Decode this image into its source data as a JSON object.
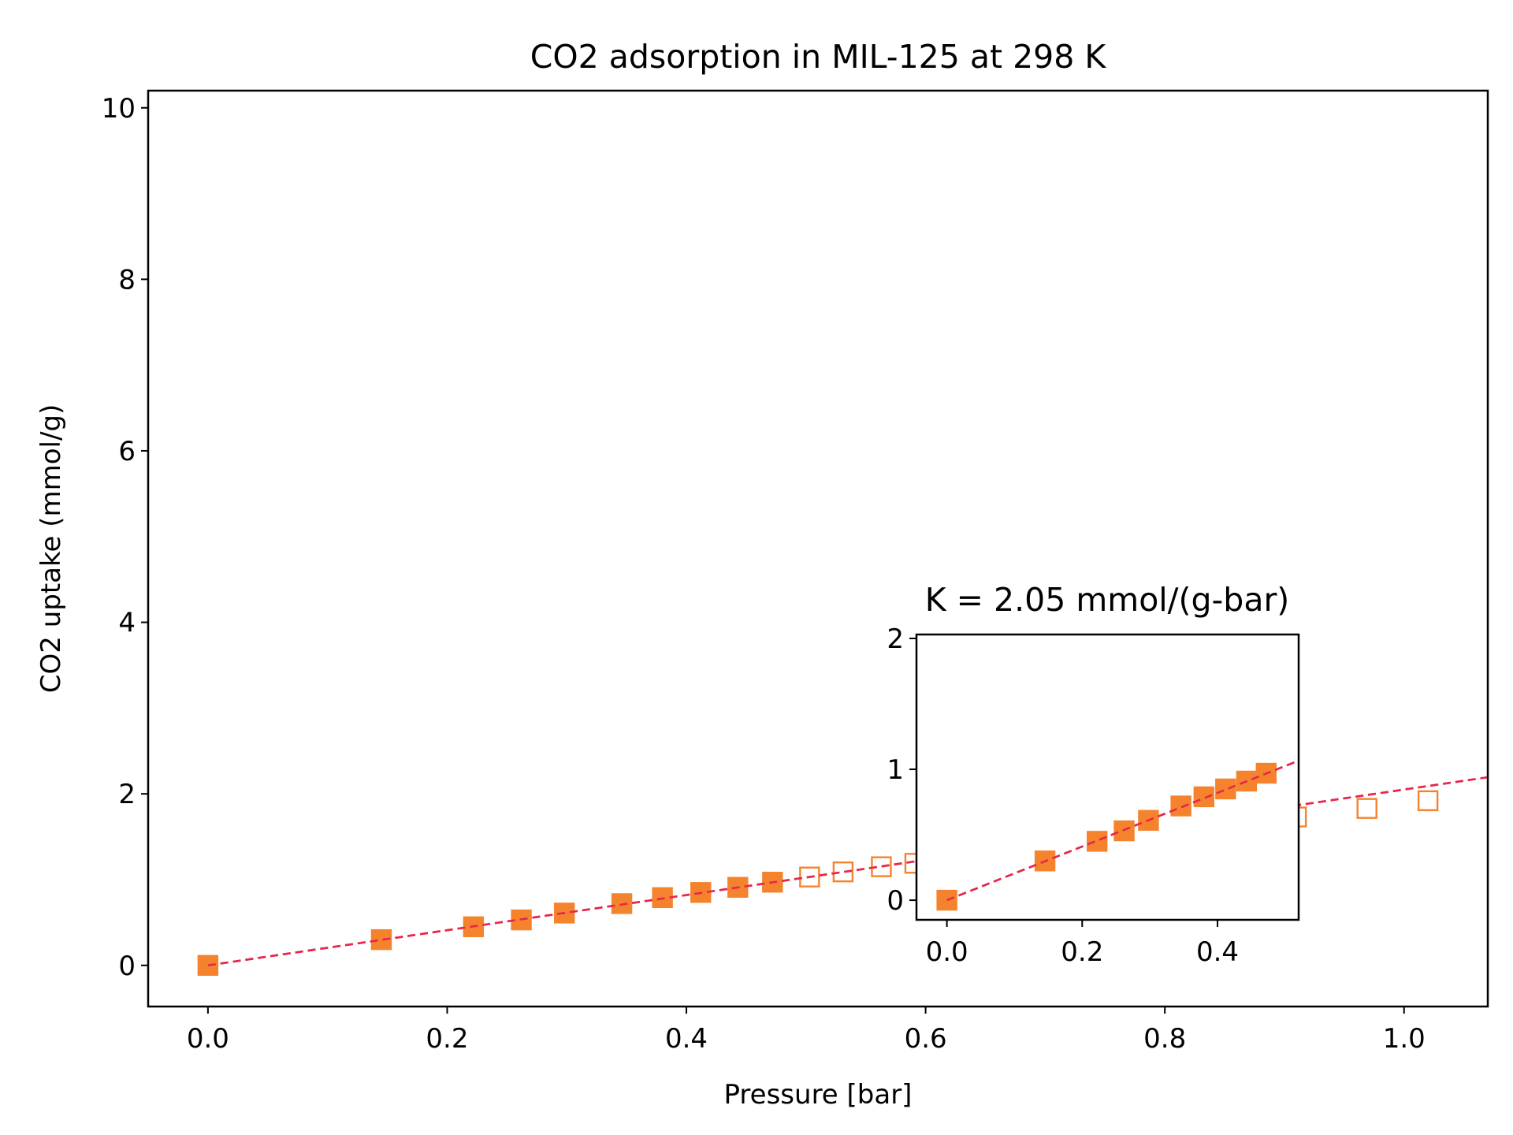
{
  "chart_data": {
    "type": "scatter",
    "title": "CO2 adsorption in MIL-125 at 298 K",
    "xlabel": "Pressure [bar]",
    "ylabel": "CO2 uptake (mmol/g)",
    "xlim": [
      -0.05,
      1.07
    ],
    "ylim": [
      -0.48,
      10.2
    ],
    "xticks": [
      "0.0",
      "0.2",
      "0.4",
      "0.6",
      "0.8",
      "1.0"
    ],
    "yticks": [
      "0",
      "2",
      "4",
      "6",
      "8",
      "10"
    ],
    "colors": {
      "marker": "#f5832e",
      "fit_line": "#e8264a",
      "axes": "#000000"
    },
    "series": [
      {
        "marker": "filled-square",
        "x": [
          0.0,
          0.145,
          0.222,
          0.262,
          0.298,
          0.346,
          0.38,
          0.412,
          0.443,
          0.472
        ],
        "y": [
          0.0,
          0.3,
          0.45,
          0.53,
          0.61,
          0.72,
          0.79,
          0.85,
          0.91,
          0.97
        ]
      },
      {
        "marker": "open-square",
        "x": [
          0.503,
          0.531,
          0.563,
          0.591,
          0.62,
          0.65,
          0.68,
          0.71,
          0.74,
          0.77,
          0.8,
          0.83,
          0.855,
          0.88,
          0.91,
          0.969,
          1.02
        ],
        "y": [
          1.03,
          1.09,
          1.15,
          1.19,
          1.24,
          1.29,
          1.34,
          1.39,
          1.44,
          1.48,
          1.53,
          1.57,
          1.62,
          1.67,
          1.73,
          1.83,
          1.92
        ]
      }
    ],
    "fit_line": {
      "style": "dashed",
      "slope": 2.05,
      "intercept": 0
    },
    "inset": {
      "title": "K = 2.05 mmol/(g-bar)",
      "xlim": [
        -0.045,
        0.52
      ],
      "ylim": [
        -0.15,
        2.03
      ],
      "xticks": [
        "0.0",
        "0.2",
        "0.4"
      ],
      "yticks": [
        "0",
        "1",
        "2"
      ],
      "x": [
        0.0,
        0.145,
        0.222,
        0.262,
        0.298,
        0.346,
        0.38,
        0.412,
        0.443,
        0.472
      ],
      "y": [
        0.0,
        0.3,
        0.45,
        0.53,
        0.61,
        0.72,
        0.79,
        0.85,
        0.91,
        0.97
      ]
    }
  }
}
